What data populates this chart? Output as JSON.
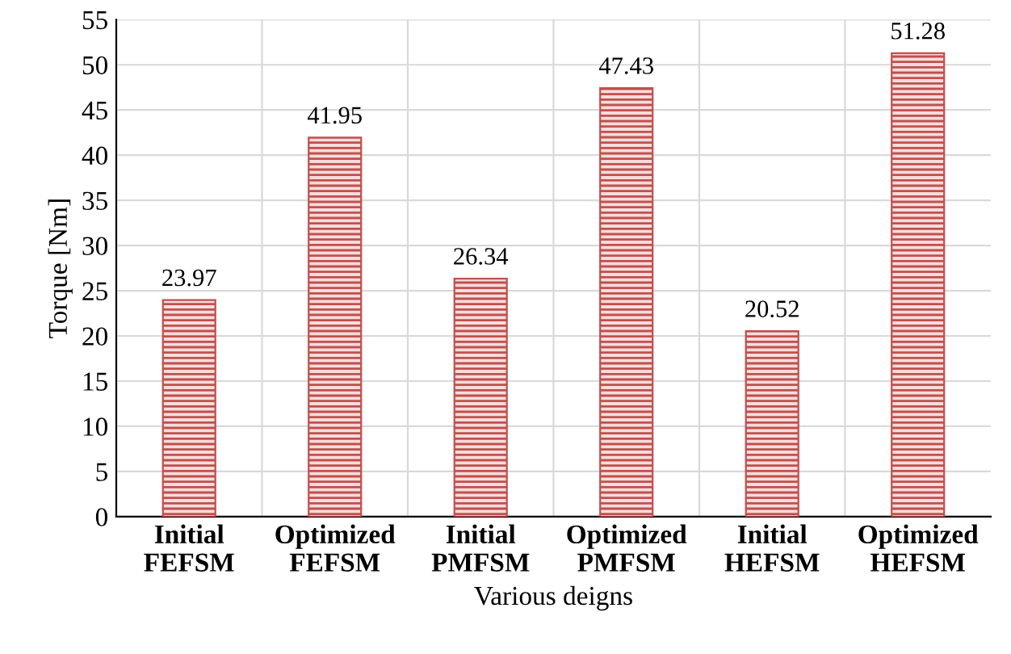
{
  "chart_data": {
    "type": "bar",
    "xlabel": "Various deigns",
    "ylabel": "Torque [Nm]",
    "categories": [
      "Initial\nFEFSM",
      "Optimized\nFEFSM",
      "Initial\nPMFSM",
      "Optimized\nPMFSM",
      "Initial\nHEFSM",
      "Optimized\nHEFSM"
    ],
    "values": [
      23.97,
      41.95,
      26.34,
      47.43,
      20.52,
      51.28
    ],
    "color": "#c0504d",
    "ylim": [
      0,
      55
    ],
    "yticks": [
      0,
      5,
      10,
      15,
      20,
      25,
      30,
      35,
      40,
      45,
      50,
      55
    ],
    "grid": "y",
    "data_labels": true,
    "legend": false
  }
}
